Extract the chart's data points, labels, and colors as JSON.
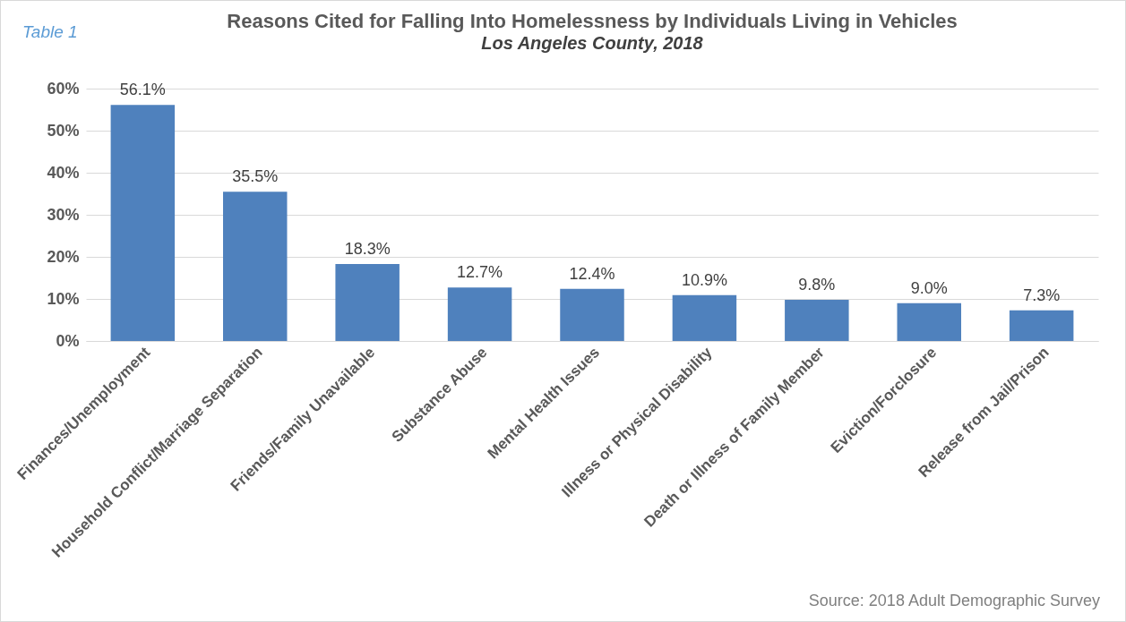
{
  "chart_data": {
    "type": "bar",
    "title": "Reasons Cited for Falling Into Homelessness by Individuals Living in Vehicles",
    "subtitle": "Los Angeles County, 2018",
    "annotations": [
      "Table 1",
      "Source: 2018 Adult Demographic Survey"
    ],
    "categories": [
      "Finances/Unemployment",
      "Household Conflict/Marriage Separation",
      "Friends/Family Unavailable",
      "Substance Abuse",
      "Mental Health Issues",
      "Illness or Physical Disability",
      "Death or Illness of Family Member",
      "Eviction/Forclosure",
      "Release from Jail/Prison"
    ],
    "values": [
      56.1,
      35.5,
      18.3,
      12.7,
      12.4,
      10.9,
      9.8,
      9.0,
      7.3
    ],
    "value_labels": [
      "56.1%",
      "35.5%",
      "18.3%",
      "12.7%",
      "12.4%",
      "10.9%",
      "9.8%",
      "9.0%",
      "7.3%"
    ],
    "color": "#4f81bd",
    "ylim": [
      0,
      60
    ],
    "yticks": [
      {
        "value": 0,
        "label": "0%"
      },
      {
        "value": 10,
        "label": "10%"
      },
      {
        "value": 20,
        "label": "20%"
      },
      {
        "value": 30,
        "label": "30%"
      },
      {
        "value": 40,
        "label": "40%"
      },
      {
        "value": 50,
        "label": "50%"
      },
      {
        "value": 60,
        "label": "60%"
      }
    ],
    "grid": "y"
  }
}
